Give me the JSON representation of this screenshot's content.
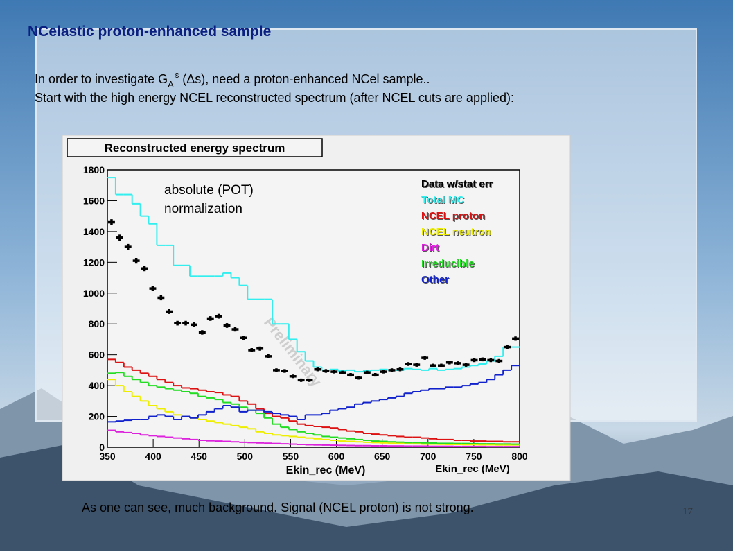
{
  "slide_title": "NCelastic proton-enhanced sample",
  "intro": {
    "line1_start": "In order to investigate G",
    "line1_sub": "A",
    "line1_sup": "s",
    "line1_end": " (Δs), need a proton-enhanced NCel sample..",
    "line2": "Start with the high energy NCEL reconstructed spectrum (after NCEL cuts are applied):"
  },
  "conclusion": "As one can see, much background. Signal (NCEL proton) is not strong.",
  "page_number": "17",
  "chart_data": {
    "type": "histogram",
    "title": "Reconstructed energy spectrum",
    "xlabel": "Ekin_rec (MeV)",
    "annotations": [
      "absolute (POT)",
      "normalization",
      "Preliminary",
      "Ekin_rec (MeV)"
    ],
    "xlim": [
      350,
      800
    ],
    "ylim": [
      0,
      1800
    ],
    "xticks": [
      350,
      400,
      450,
      500,
      550,
      600,
      650,
      700,
      750,
      800
    ],
    "yticks": [
      0,
      200,
      400,
      600,
      800,
      1000,
      1200,
      1400,
      1600,
      1800
    ],
    "bins": [
      350,
      359,
      368,
      377,
      386,
      395,
      404,
      413,
      422,
      431,
      440,
      449,
      458,
      467,
      476,
      485,
      494,
      503,
      512,
      521,
      530,
      539,
      548,
      557,
      566,
      575,
      584,
      593,
      602,
      611,
      620,
      629,
      638,
      647,
      656,
      665,
      674,
      683,
      692,
      701,
      710,
      719,
      728,
      737,
      746,
      755,
      764,
      773,
      782,
      791,
      800
    ],
    "data": {
      "name": "Data w/stat err",
      "color": "#000000",
      "values": [
        1460,
        1360,
        1300,
        1210,
        1160,
        1030,
        970,
        880,
        805,
        805,
        795,
        745,
        835,
        850,
        790,
        765,
        710,
        630,
        640,
        590,
        500,
        495,
        460,
        435,
        435,
        505,
        495,
        490,
        485,
        470,
        450,
        485,
        470,
        490,
        500,
        505,
        540,
        535,
        580,
        530,
        530,
        550,
        545,
        535,
        565,
        570,
        565,
        560,
        650,
        705
      ],
      "errors": [
        40,
        40,
        38,
        37,
        36,
        34,
        33,
        31,
        30,
        30,
        30,
        29,
        30,
        31,
        30,
        29,
        28,
        27,
        27,
        26,
        24,
        24,
        23,
        22,
        22,
        24,
        24,
        23,
        23,
        23,
        22,
        23,
        23,
        23,
        24,
        24,
        25,
        25,
        25,
        24,
        24,
        25,
        25,
        25,
        25,
        25,
        25,
        25,
        27,
        28
      ]
    },
    "series": [
      {
        "name": "Total MC",
        "color": "#33eeee",
        "values": [
          1750,
          1640,
          1640,
          1580,
          1500,
          1450,
          1310,
          1310,
          1180,
          1180,
          1110,
          1110,
          1110,
          1110,
          1130,
          1100,
          1050,
          960,
          960,
          960,
          800,
          800,
          700,
          620,
          560,
          520,
          500,
          505,
          495,
          500,
          490,
          495,
          500,
          505,
          500,
          500,
          510,
          505,
          500,
          510,
          500,
          505,
          510,
          520,
          530,
          540,
          560,
          590,
          650,
          650
        ]
      },
      {
        "name": "NCEL proton",
        "color": "#dd1111",
        "values": [
          570,
          550,
          520,
          500,
          480,
          460,
          440,
          420,
          400,
          385,
          380,
          370,
          360,
          355,
          340,
          330,
          300,
          280,
          250,
          220,
          200,
          190,
          170,
          150,
          140,
          135,
          130,
          125,
          115,
          105,
          100,
          90,
          85,
          80,
          75,
          70,
          65,
          65,
          60,
          55,
          50,
          50,
          45,
          45,
          40,
          40,
          38,
          38,
          35,
          35
        ]
      },
      {
        "name": "NCEL neutron",
        "color": "#eeee00",
        "values": [
          440,
          400,
          360,
          330,
          300,
          270,
          250,
          230,
          210,
          200,
          190,
          180,
          170,
          160,
          150,
          140,
          130,
          120,
          100,
          90,
          80,
          75,
          70,
          65,
          60,
          55,
          50,
          45,
          40,
          38,
          35,
          32,
          30,
          28,
          26,
          25,
          24,
          22,
          20,
          20,
          19,
          18,
          18,
          17,
          17,
          16,
          16,
          15,
          15,
          15
        ]
      },
      {
        "name": "Dirt",
        "color": "#dd22dd",
        "values": [
          110,
          100,
          95,
          90,
          80,
          75,
          70,
          65,
          60,
          55,
          50,
          45,
          42,
          40,
          38,
          35,
          32,
          30,
          28,
          26,
          24,
          22,
          20,
          18,
          16,
          15,
          14,
          13,
          12,
          11,
          10,
          10,
          9,
          9,
          8,
          8,
          7,
          7,
          7,
          6,
          6,
          6,
          5,
          5,
          5,
          5,
          4,
          4,
          4,
          4
        ]
      },
      {
        "name": "Irreducible",
        "color": "#22dd22",
        "values": [
          480,
          485,
          460,
          440,
          420,
          400,
          390,
          380,
          370,
          360,
          350,
          330,
          320,
          310,
          290,
          280,
          260,
          240,
          220,
          190,
          150,
          130,
          115,
          100,
          90,
          80,
          70,
          65,
          60,
          55,
          50,
          45,
          40,
          38,
          35,
          33,
          30,
          30,
          28,
          27,
          25,
          25,
          24,
          24,
          23,
          22,
          22,
          21,
          21,
          20
        ]
      },
      {
        "name": "Other",
        "color": "#1122cc",
        "values": [
          165,
          170,
          175,
          180,
          180,
          200,
          210,
          200,
          180,
          200,
          190,
          210,
          230,
          250,
          270,
          260,
          230,
          240,
          240,
          230,
          220,
          210,
          200,
          180,
          210,
          210,
          220,
          240,
          250,
          260,
          280,
          290,
          300,
          310,
          320,
          330,
          350,
          360,
          370,
          380,
          380,
          390,
          390,
          400,
          410,
          420,
          440,
          470,
          500,
          530
        ]
      }
    ]
  }
}
